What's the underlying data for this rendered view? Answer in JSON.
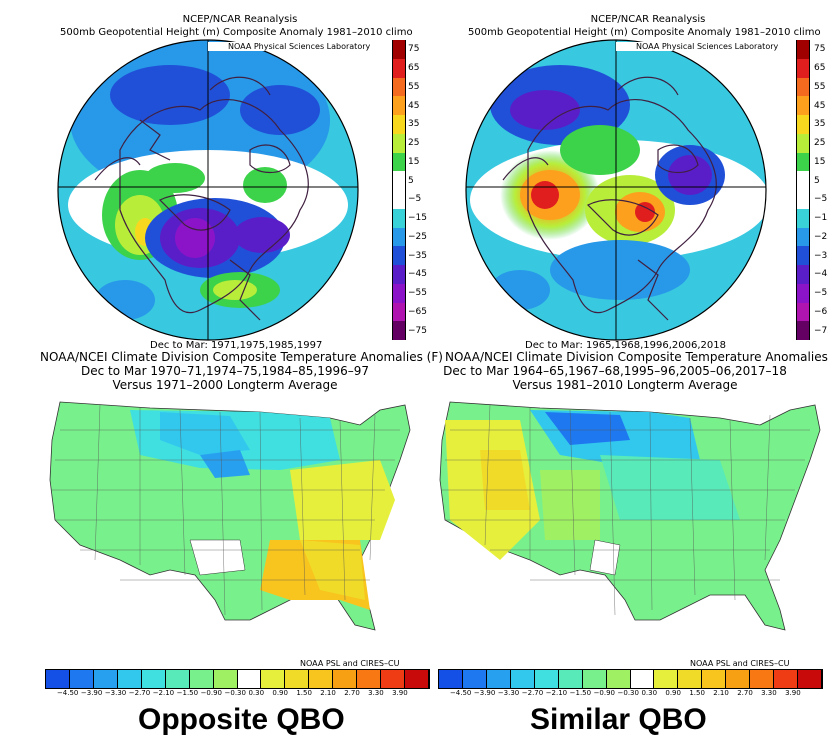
{
  "panels": [
    {
      "reanalysis": "NCEP/NCAR Reanalysis",
      "height_title": "500mb Geopotential Height (m) Composite Anomaly 1981–2010 climo",
      "lab_label": "NOAA Physical Sciences Laboratory",
      "period_label": "Dec to Mar: 1971,1975,1985,1997",
      "temp_title": "NOAA/NCEI Climate Division Composite Temperature Anomalies (F)",
      "temp_period": "Dec to Mar  1970–71,1974–75,1984–85,1996–97",
      "baseline": "Versus 1971–2000 Longterm Average",
      "credit": "NOAA PSL and CIRES–CU",
      "caption": "Opposite QBO"
    },
    {
      "reanalysis": "NCEP/NCAR Reanalysis",
      "height_title": "500mb Geopotential Height (m) Composite Anomaly 1981–2010 climo",
      "lab_label": "NOAA Physical Sciences Laboratory",
      "period_label": "Dec to Mar: 1965,1968,1996,2006,2018",
      "temp_title": "NOAA/NCEI Climate Division Composite Temperature Anomalies (F)",
      "temp_period": "Dec to Mar  1964–65,1967–68,1995–96,2005–06,2017–18",
      "baseline": "Versus 1981–2010 Longterm Average",
      "credit": "NOAA PSL and CIRES–CU",
      "caption": "Similar QBO"
    }
  ],
  "height_scale": [
    "75",
    "65",
    "55",
    "45",
    "35",
    "25",
    "15",
    "5",
    "−5",
    "−15",
    "−25",
    "−35",
    "−45",
    "−55",
    "−65",
    "−75"
  ],
  "height_colors": [
    "#a00000",
    "#e01e1e",
    "#f46a1e",
    "#fca01e",
    "#f8d81e",
    "#b8ee3a",
    "#3cd24a",
    "#ffffff",
    "#ffffff",
    "#38d2d8",
    "#2898e8",
    "#2050d8",
    "#5a1ec8",
    "#8c14c8",
    "#b014b0",
    "#640064"
  ],
  "temp_scale": [
    "−4.50",
    "−3.90",
    "−3.30",
    "−2.70",
    "−2.10",
    "−1.50",
    "−0.90",
    "−0.30",
    "0.30",
    "0.90",
    "1.50",
    "2.10",
    "2.70",
    "3.30",
    "3.90"
  ],
  "temp_colors": [
    "#1450e6",
    "#1e78f0",
    "#28a0f0",
    "#32c8ee",
    "#40e0e0",
    "#58eab8",
    "#78f08c",
    "#a0f064",
    "#ffffff",
    "#e6f03c",
    "#f0dc28",
    "#f8c41e",
    "#f8a014",
    "#f87814",
    "#f03c14",
    "#c80a0a"
  ]
}
